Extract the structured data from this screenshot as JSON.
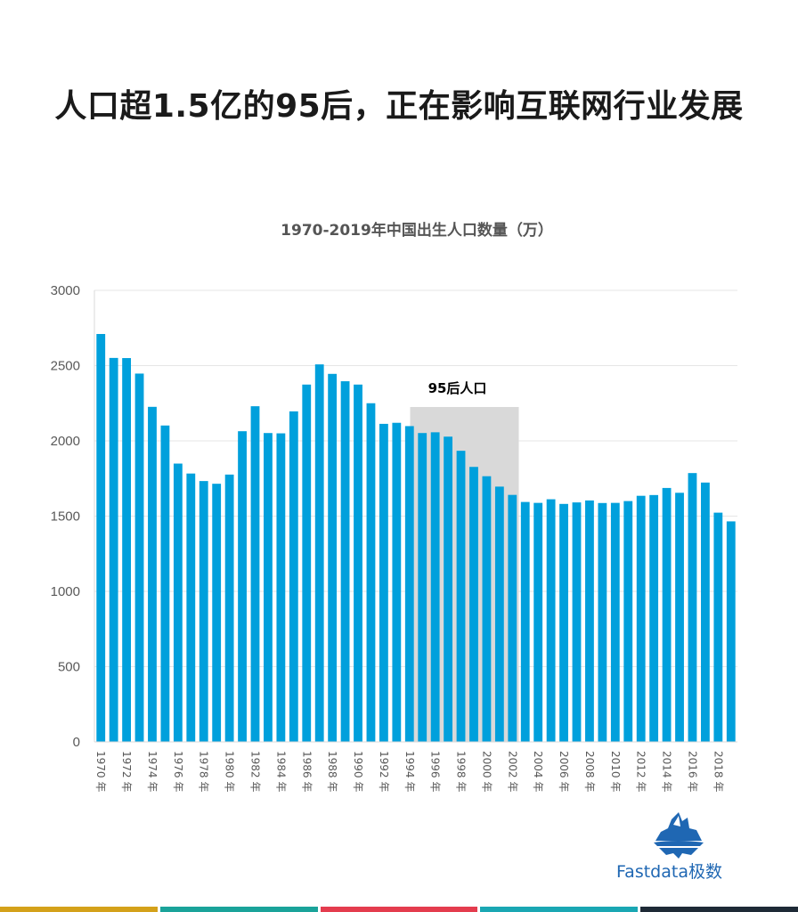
{
  "headline": "人口超1.5亿的95后，正在影响互联网行业发展",
  "brand": {
    "name": "Fastdata极数",
    "logo_icon": "iceberg-icon",
    "color": "#1f67b3"
  },
  "footer_bar_colors": [
    "#d4a11a",
    "#1aa39a",
    "#e43c4e",
    "#1aa7b3",
    "#1e2a36"
  ],
  "chart_data": {
    "type": "bar",
    "title": "1970-2019年中国出生人口数量（万）",
    "xlabel": "",
    "ylabel": "",
    "ylim": [
      0,
      3000
    ],
    "yticks": [
      0,
      500,
      1000,
      1500,
      2000,
      2500,
      3000
    ],
    "grid": true,
    "bar_color": "#00a0dc",
    "categories": [
      "1970 年",
      "1971 年",
      "1972 年",
      "1973 年",
      "1974 年",
      "1975 年",
      "1976 年",
      "1977 年",
      "1978 年",
      "1979 年",
      "1980 年",
      "1981 年",
      "1982 年",
      "1983 年",
      "1984 年",
      "1985 年",
      "1986 年",
      "1987 年",
      "1988 年",
      "1989 年",
      "1990 年",
      "1991 年",
      "1992 年",
      "1993 年",
      "1994 年",
      "1995 年",
      "1996 年",
      "1997 年",
      "1998 年",
      "1999 年",
      "2000 年",
      "2001 年",
      "2002 年",
      "2003 年",
      "2004 年",
      "2005 年",
      "2006 年",
      "2007 年",
      "2008 年",
      "2009 年",
      "2010 年",
      "2011 年",
      "2012 年",
      "2013 年",
      "2014 年",
      "2015 年",
      "2016 年",
      "2017 年",
      "2018 年",
      "2019 年"
    ],
    "tick_labels_shown": [
      "1970 年",
      "1972 年",
      "1974 年",
      "1976 年",
      "1978 年",
      "1980 年",
      "1982 年",
      "1984 年",
      "1986 年",
      "1988 年",
      "1990 年",
      "1992 年",
      "1994 年",
      "1996 年",
      "1998 年",
      "2000 年",
      "2002 年",
      "2004 年",
      "2006 年",
      "2008 年",
      "2010 年",
      "2012 年",
      "2014 年",
      "2016 年",
      "2018 年"
    ],
    "values": [
      2710,
      2551,
      2550,
      2447,
      2226,
      2102,
      1849,
      1783,
      1733,
      1715,
      1776,
      2064,
      2230,
      2052,
      2050,
      2196,
      2374,
      2508,
      2445,
      2396,
      2374,
      2250,
      2113,
      2120,
      2098,
      2052,
      2057,
      2028,
      1934,
      1827,
      1765,
      1696,
      1641,
      1594,
      1588,
      1612,
      1581,
      1591,
      1604,
      1587,
      1588,
      1600,
      1635,
      1640,
      1687,
      1655,
      1786,
      1723,
      1523,
      1465
    ],
    "highlight": {
      "label": "95后人口",
      "from_year": 1995,
      "to_year": 2002,
      "top_value": 2225,
      "color": "#d9d9d9"
    }
  }
}
